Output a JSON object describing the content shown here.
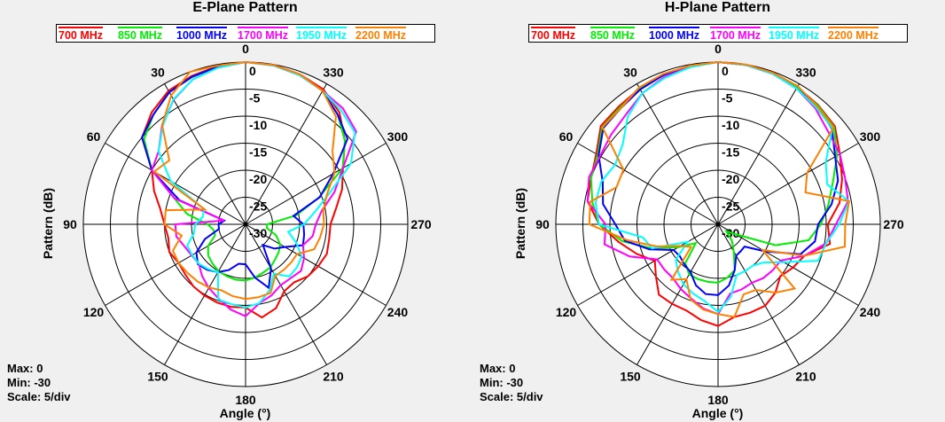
{
  "chart_data": [
    {
      "type": "polar-line",
      "title": "E-Plane Pattern",
      "xlabel": "Angle  (°)",
      "ylabel": "Pattern  (dB)",
      "rlim": [
        -30,
        0
      ],
      "r_ticks": [
        "0",
        "-5",
        "-10",
        "-15",
        "-20",
        "-25",
        "-30"
      ],
      "angle_ticks": [
        "0",
        "30",
        "60",
        "90",
        "120",
        "150",
        "180",
        "210",
        "240",
        "270",
        "300",
        "330"
      ],
      "angle_direction": "counterclockwise from top",
      "grid": true,
      "legend": "top",
      "info": {
        "max": "Max: 0",
        "min": "Min: -30",
        "scale": "Scale: 5/div"
      },
      "angles": [
        0,
        10,
        20,
        30,
        40,
        50,
        60,
        70,
        80,
        90,
        100,
        110,
        120,
        130,
        140,
        150,
        160,
        170,
        180,
        190,
        200,
        210,
        220,
        230,
        240,
        250,
        260,
        270,
        280,
        290,
        300,
        310,
        320,
        330,
        340,
        350
      ],
      "series": [
        {
          "name": "700 MHz",
          "color": "#ff0000",
          "values": [
            0,
            -0.3,
            -0.8,
            -1.5,
            -3,
            -5,
            -10,
            -12,
            -14,
            -15,
            -15.5,
            -15,
            -15.7,
            -15.5,
            -15,
            -14.8,
            -14.6,
            -14.5,
            -14.6,
            -12.5,
            -13.5,
            -15.7,
            -16,
            -15,
            -14.5,
            -14,
            -14.3,
            -14.3,
            -13,
            -11,
            -9.2,
            -6,
            -3,
            -1.2,
            -0.5,
            -0.1
          ]
        },
        {
          "name": "850 MHz",
          "color": "#00ee00",
          "values": [
            0,
            -0.4,
            -1,
            -1.8,
            -3.5,
            -5.5,
            -10,
            -16,
            -19,
            -23,
            -24,
            -24,
            -22,
            -21,
            -20.5,
            -20,
            -19.8,
            -19.6,
            -19.6,
            -20,
            -20.5,
            -20.8,
            -21.5,
            -22,
            -22.6,
            -24,
            -26,
            -26,
            -20.5,
            -15.6,
            -9.3,
            -6,
            -3.5,
            -1.5,
            -0.6,
            -0.1
          ]
        },
        {
          "name": "1000 MHz",
          "color": "#0000ff",
          "values": [
            0,
            -0.4,
            -1,
            -1.8,
            -3.5,
            -5,
            -10,
            -17,
            -26,
            -25,
            -25,
            -22,
            -19.5,
            -18.5,
            -19,
            -19.8,
            -21,
            -22.6,
            -22.6,
            -20,
            -17.5,
            -20.6,
            -25,
            -23,
            -21.6,
            -18.7,
            -19,
            -19.3,
            -21,
            -15.4,
            -11.3,
            -5.4,
            -3.5,
            -1.5,
            -0.6,
            -0.1
          ]
        },
        {
          "name": "1700 MHz",
          "color": "#ff00ff",
          "values": [
            0,
            -0.6,
            -1.5,
            -3.4,
            -6,
            -9,
            -10,
            -16,
            -26,
            -17,
            -17,
            -18,
            -18.5,
            -18.7,
            -17.5,
            -16.4,
            -15.4,
            -14,
            -13,
            -15.2,
            -16,
            -17,
            -17,
            -16.6,
            -17.5,
            -18.7,
            -17.4,
            -17,
            -15.7,
            -12.5,
            -9.2,
            -3.3,
            -2,
            -1.5,
            -0.7,
            -0.2
          ]
        },
        {
          "name": "1950 MHz",
          "color": "#00ffff",
          "values": [
            0,
            -0.6,
            -1.5,
            -3.3,
            -6.2,
            -9,
            -14,
            -21.8,
            -22,
            -20.7,
            -20.3,
            -18.5,
            -18.6,
            -18.7,
            -19.2,
            -19.8,
            -15.2,
            -15,
            -14.6,
            -15.2,
            -17,
            -19.5,
            -17.4,
            -17.6,
            -18,
            -20,
            -22,
            -19.2,
            -17,
            -13.6,
            -7.5,
            -3.6,
            -2.5,
            -1.5,
            -0.7,
            -0.2
          ]
        },
        {
          "name": "2200 MHz",
          "color": "#ff8000",
          "values": [
            0,
            -0.2,
            0,
            -2.5,
            -6,
            -11.6,
            -10.5,
            -22,
            -15,
            -15,
            -18,
            -15.7,
            -15.7,
            -16,
            -16.2,
            -16.5,
            -17,
            -16.5,
            -16.2,
            -16.3,
            -16.5,
            -19,
            -19,
            -19,
            -19,
            -16.5,
            -16,
            -15.5,
            -15.4,
            -14,
            -11,
            -9,
            -4,
            -1.5,
            -0.5,
            -0.1
          ]
        }
      ]
    },
    {
      "type": "polar-line",
      "title": "H-Plane Pattern",
      "xlabel": "Angle  (°)",
      "ylabel": "Pattern  (dB)",
      "rlim": [
        -30,
        0
      ],
      "r_ticks": [
        "0",
        "-5",
        "-10",
        "-15",
        "-20",
        "-25",
        "-30"
      ],
      "angle_ticks": [
        "0",
        "30",
        "60",
        "90",
        "120",
        "150",
        "180",
        "210",
        "240",
        "270",
        "300",
        "330"
      ],
      "angle_direction": "counterclockwise from top",
      "grid": true,
      "legend": "top",
      "info": {
        "max": "Max: 0",
        "min": "Min: -30",
        "scale": "Scale: 5/div"
      },
      "angles": [
        0,
        10,
        20,
        30,
        40,
        50,
        60,
        70,
        80,
        90,
        100,
        110,
        120,
        130,
        140,
        150,
        160,
        170,
        180,
        190,
        200,
        210,
        220,
        230,
        240,
        250,
        260,
        270,
        280,
        290,
        300,
        310,
        320,
        330,
        340,
        350
      ],
      "series": [
        {
          "name": "700 MHz",
          "color": "#ff0000",
          "values": [
            0,
            -0.2,
            -0.5,
            -1,
            -1.5,
            -1.7,
            -4,
            -5,
            -5.5,
            -8,
            -11.3,
            -14,
            -16.5,
            -15,
            -13,
            -13,
            -13,
            -12,
            -11.2,
            -12.6,
            -12.6,
            -12.6,
            -13.5,
            -15,
            -14,
            -13,
            -9,
            -9.7,
            -7.2,
            -5.6,
            -4,
            -1.8,
            -1.2,
            -0.7,
            -0.3,
            -0.1
          ]
        },
        {
          "name": "850 MHz",
          "color": "#00ee00",
          "values": [
            0,
            -0.2,
            -0.6,
            -1.1,
            -1.8,
            -2,
            -4.3,
            -5,
            -6.4,
            -8,
            -12,
            -17,
            -21.5,
            -24.6,
            -20.6,
            -19.3,
            -19.2,
            -19.2,
            -19.2,
            -20,
            -21,
            -24.2,
            -26,
            -28,
            -26.4,
            -18.7,
            -13,
            -11,
            -9.3,
            -7.4,
            -4.6,
            -2,
            -1.3,
            -0.8,
            -0.3,
            -0.1
          ]
        },
        {
          "name": "1000 MHz",
          "color": "#0000ff",
          "values": [
            0,
            -0.2,
            -0.6,
            -1.2,
            -2,
            -2.3,
            -4.5,
            -7.3,
            -8.4,
            -11,
            -12.5,
            -16.5,
            -20.5,
            -20.8,
            -20.3,
            -19.8,
            -18,
            -16.9,
            -16.9,
            -18.5,
            -21,
            -23.3,
            -23.5,
            -23.6,
            -20,
            -13.8,
            -11.8,
            -11.5,
            -8.7,
            -6.4,
            -5,
            -2.5,
            -1.5,
            -1,
            -0.4,
            -0.1
          ]
        },
        {
          "name": "1700 MHz",
          "color": "#ff00ff",
          "values": [
            0,
            -0.4,
            -1,
            -2,
            -3.5,
            -4.2,
            -4.8,
            -4.6,
            -5.5,
            -9.2,
            -8.7,
            -12.6,
            -17,
            -17,
            -17,
            -16.2,
            -15.4,
            -14.2,
            -13.4,
            -17,
            -17.2,
            -17.5,
            -17,
            -16.8,
            -16.6,
            -13,
            -9.7,
            -8.2,
            -5.6,
            -5,
            -4,
            -3.4,
            -2,
            -1,
            -0.4,
            -0.1
          ]
        },
        {
          "name": "1950 MHz",
          "color": "#00ffff",
          "values": [
            0,
            -0.5,
            -1.2,
            -2,
            -4,
            -7,
            -8,
            -7,
            -7,
            -8,
            -15.9,
            -17,
            -23.5,
            -19.8,
            -18.5,
            -17.2,
            -16.4,
            -15.6,
            -13.8,
            -16.4,
            -20,
            -20,
            -20,
            -19,
            -16,
            -10.3,
            -9.7,
            -7.6,
            -5.4,
            -8.5,
            -7,
            -2.4,
            -1.8,
            -1,
            -0.4,
            -0.1
          ]
        },
        {
          "name": "2200 MHz",
          "color": "#ff8000",
          "values": [
            0,
            -0.2,
            -0.4,
            -0.8,
            -2,
            -2.1,
            -9.8,
            -10,
            -6,
            -6.2,
            -13,
            -18,
            -22,
            -23.5,
            -16.6,
            -18.3,
            -15.2,
            -14,
            -13.4,
            -12.6,
            -16.2,
            -16,
            -13.5,
            -11.5,
            -20.5,
            -13,
            -6.2,
            -6.5,
            -5.4,
            -12.8,
            -11,
            -2.1,
            -1.5,
            -0.5,
            -0.2,
            0
          ]
        }
      ]
    }
  ]
}
